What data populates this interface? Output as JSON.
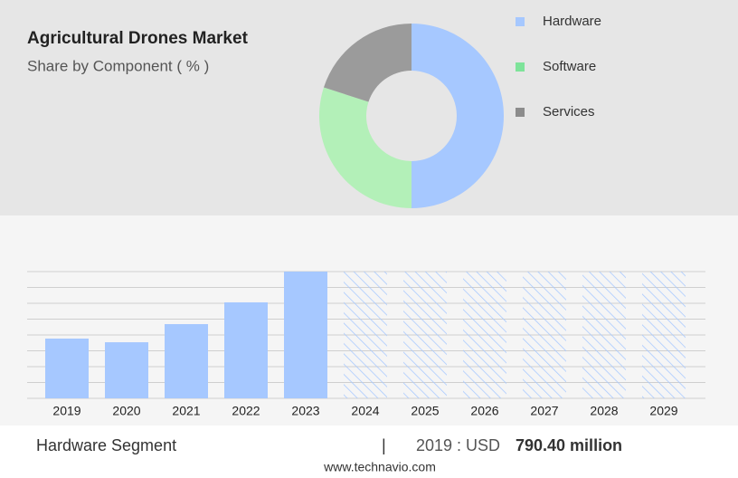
{
  "header": {
    "title": "Agricultural Drones Market",
    "subtitle": "Share by Component ( % )"
  },
  "chart_data": [
    {
      "type": "donut",
      "categories": [
        "Hardware",
        "Software",
        "Services"
      ],
      "values": [
        50,
        30,
        20
      ],
      "colors": [
        "#a6c8ff",
        "#b3f0b8",
        "#9b9b9b"
      ],
      "legend_colors": [
        "#a6c8ff",
        "#7ee39a",
        "#8c8c8c"
      ]
    },
    {
      "type": "bar",
      "categories": [
        "2019",
        "2020",
        "2021",
        "2022",
        "2023",
        "2024",
        "2025",
        "2026",
        "2027",
        "2028",
        "2029"
      ],
      "values": [
        790.4,
        742,
        982,
        1270,
        1677,
        null,
        null,
        null,
        null,
        null,
        null
      ],
      "color": "#a6c8ff",
      "ylim": [
        0,
        1677
      ],
      "grid": true
    }
  ],
  "footer": {
    "segment": "Hardware Segment",
    "separator": "|",
    "year_label": "2019 : USD",
    "value": "790.40 million",
    "source": "www.technavio.com"
  }
}
